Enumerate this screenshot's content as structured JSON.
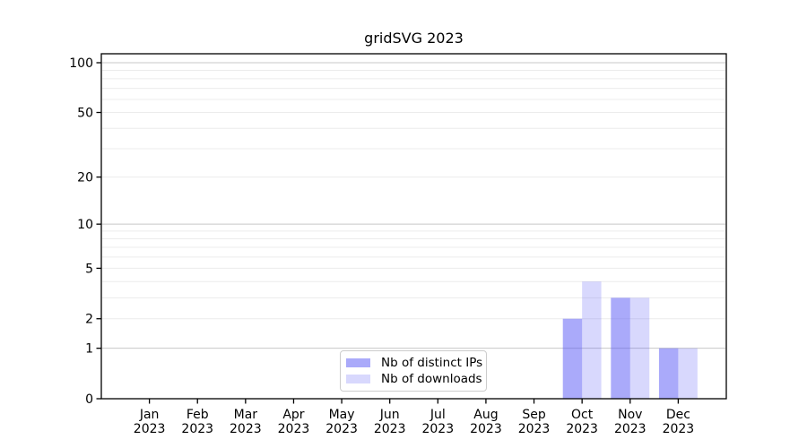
{
  "title": "gridSVG 2023",
  "chart_data": {
    "type": "bar",
    "title": "gridSVG 2023",
    "categories": [
      "Jan 2023",
      "Feb 2023",
      "Mar 2023",
      "Apr 2023",
      "May 2023",
      "Jun 2023",
      "Jul 2023",
      "Aug 2023",
      "Sep 2023",
      "Oct 2023",
      "Nov 2023",
      "Dec 2023"
    ],
    "series": [
      {
        "name": "Nb of distinct IPs",
        "values": [
          0,
          0,
          0,
          0,
          0,
          0,
          0,
          0,
          0,
          2,
          3,
          1
        ]
      },
      {
        "name": "Nb of downloads",
        "values": [
          0,
          0,
          0,
          0,
          0,
          0,
          0,
          0,
          0,
          4,
          3,
          1
        ]
      }
    ],
    "y_scale": "log1p",
    "y_ticks": [
      0,
      1,
      2,
      5,
      10,
      20,
      50,
      100
    ],
    "y_major_gridlines": [
      1,
      10,
      100
    ],
    "y_minor_gridlines": [
      2,
      3,
      4,
      5,
      6,
      7,
      8,
      9,
      20,
      30,
      40,
      50,
      60,
      70,
      80,
      90
    ],
    "ylim": [
      0,
      112
    ],
    "xlabel": "",
    "ylabel": "",
    "grid": "horizontal",
    "legend_position": "lower center"
  },
  "legend": {
    "items": [
      {
        "label": "Nb of distinct IPs",
        "color_key": "bar_distinct_ips"
      },
      {
        "label": "Nb of downloads",
        "color_key": "bar_downloads"
      }
    ]
  },
  "colors": {
    "bar_distinct_ips": "rgba(85,85,245,0.5)",
    "bar_downloads": "rgba(85,85,245,0.23)",
    "major_grid": "#c8c8c8",
    "minor_grid": "#ececec",
    "frame": "#000000",
    "text": "#000000",
    "legend_border": "#cccccc",
    "background": "#ffffff"
  }
}
